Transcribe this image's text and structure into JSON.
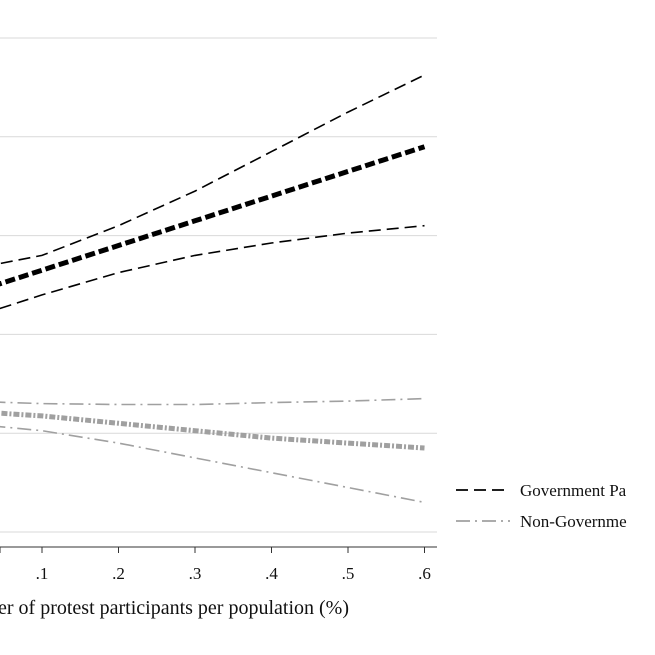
{
  "chart_data": {
    "type": "line",
    "xlabel": "nber of protest participants per population (%)",
    "ylabel": "",
    "x_ticks": [
      ".1",
      ".2",
      ".3",
      ".4",
      ".5",
      ".6"
    ],
    "x_tick_values": [
      0.1,
      0.2,
      0.3,
      0.4,
      0.5,
      0.6
    ],
    "xlim": [
      -0.0556,
      0.615
    ],
    "ylim": [
      0.0,
      1.0
    ],
    "grid": "horizontal",
    "gridlines_y": [
      0.0,
      0.2,
      0.4,
      0.6,
      0.8,
      1.0
    ],
    "legend_position": "right",
    "series": [
      {
        "name": "Government Pa",
        "color": "#000000",
        "style": "dashed",
        "x": [
          0.0,
          0.1,
          0.2,
          0.3,
          0.4,
          0.5,
          0.6
        ],
        "estimate": [
          0.48,
          0.53,
          0.58,
          0.63,
          0.68,
          0.73,
          0.78
        ],
        "upper": [
          0.53,
          0.56,
          0.62,
          0.69,
          0.77,
          0.85,
          0.925
        ],
        "lower": [
          0.43,
          0.48,
          0.525,
          0.56,
          0.585,
          0.605,
          0.62
        ]
      },
      {
        "name": "Non-Governme",
        "color": "#a0a0a0",
        "style": "dashdot",
        "x": [
          0.0,
          0.1,
          0.2,
          0.3,
          0.4,
          0.5,
          0.6
        ],
        "estimate": [
          0.245,
          0.235,
          0.22,
          0.205,
          0.19,
          0.18,
          0.17
        ],
        "upper": [
          0.265,
          0.26,
          0.258,
          0.258,
          0.262,
          0.265,
          0.27
        ],
        "lower": [
          0.22,
          0.205,
          0.18,
          0.15,
          0.12,
          0.09,
          0.06
        ]
      }
    ]
  }
}
